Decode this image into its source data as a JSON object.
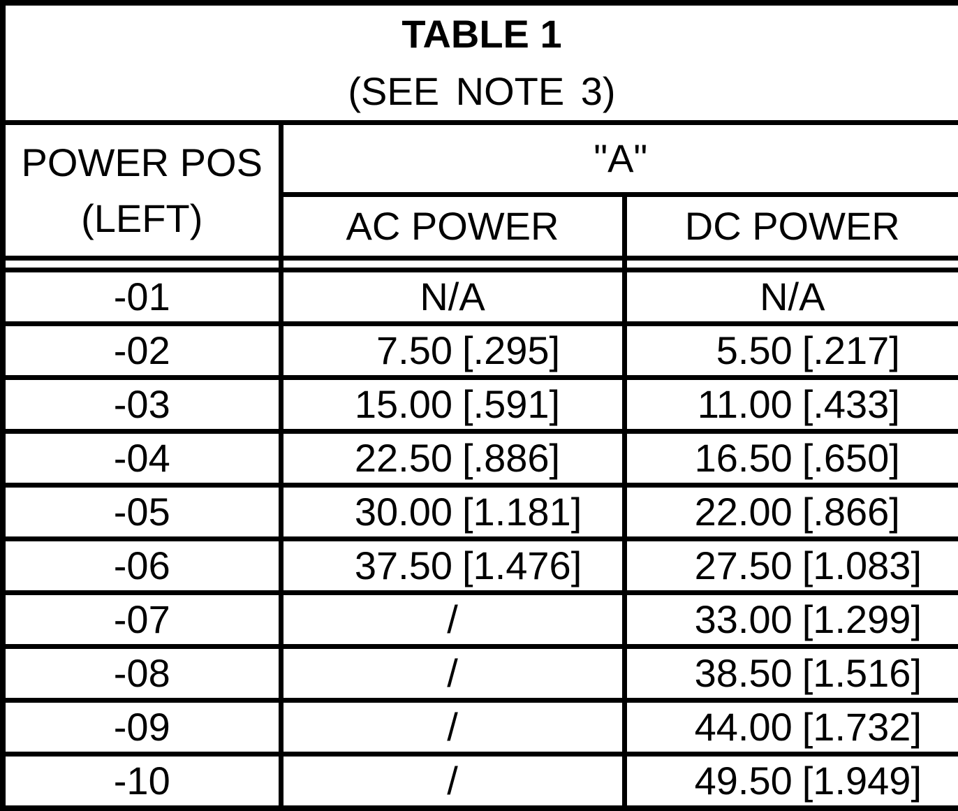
{
  "table": {
    "title": "TABLE 1",
    "subtitle": "(SEE NOTE 3)",
    "header": {
      "col1_line1": "POWER POS",
      "col1_line2": "(LEFT)",
      "group_label": "\"A\"",
      "ac_label": "AC POWER",
      "dc_label": "DC POWER"
    },
    "rows": [
      {
        "pos": "-01",
        "ac": {
          "single": "N/A"
        },
        "dc": {
          "single": "N/A"
        }
      },
      {
        "pos": "-02",
        "ac": {
          "mm": "7.50",
          "in": "[.295]"
        },
        "dc": {
          "mm": "5.50",
          "in": "[.217]"
        }
      },
      {
        "pos": "-03",
        "ac": {
          "mm": "15.00",
          "in": "[.591]"
        },
        "dc": {
          "mm": "11.00",
          "in": "[.433]"
        }
      },
      {
        "pos": "-04",
        "ac": {
          "mm": "22.50",
          "in": "[.886]"
        },
        "dc": {
          "mm": "16.50",
          "in": "[.650]"
        }
      },
      {
        "pos": "-05",
        "ac": {
          "mm": "30.00",
          "in": "[1.181]"
        },
        "dc": {
          "mm": "22.00",
          "in": "[.866]"
        }
      },
      {
        "pos": "-06",
        "ac": {
          "mm": "37.50",
          "in": "[1.476]"
        },
        "dc": {
          "mm": "27.50",
          "in": "[1.083]"
        }
      },
      {
        "pos": "-07",
        "ac": {
          "single": "/"
        },
        "dc": {
          "mm": "33.00",
          "in": "[1.299]"
        }
      },
      {
        "pos": "-08",
        "ac": {
          "single": "/"
        },
        "dc": {
          "mm": "38.50",
          "in": "[1.516]"
        }
      },
      {
        "pos": "-09",
        "ac": {
          "single": "/"
        },
        "dc": {
          "mm": "44.00",
          "in": "[1.732]"
        }
      },
      {
        "pos": "-10",
        "ac": {
          "single": "/"
        },
        "dc": {
          "mm": "49.50",
          "in": "[1.949]"
        }
      }
    ],
    "colors": {
      "border": "#000000",
      "background": "#ffffff",
      "text": "#000000"
    }
  }
}
